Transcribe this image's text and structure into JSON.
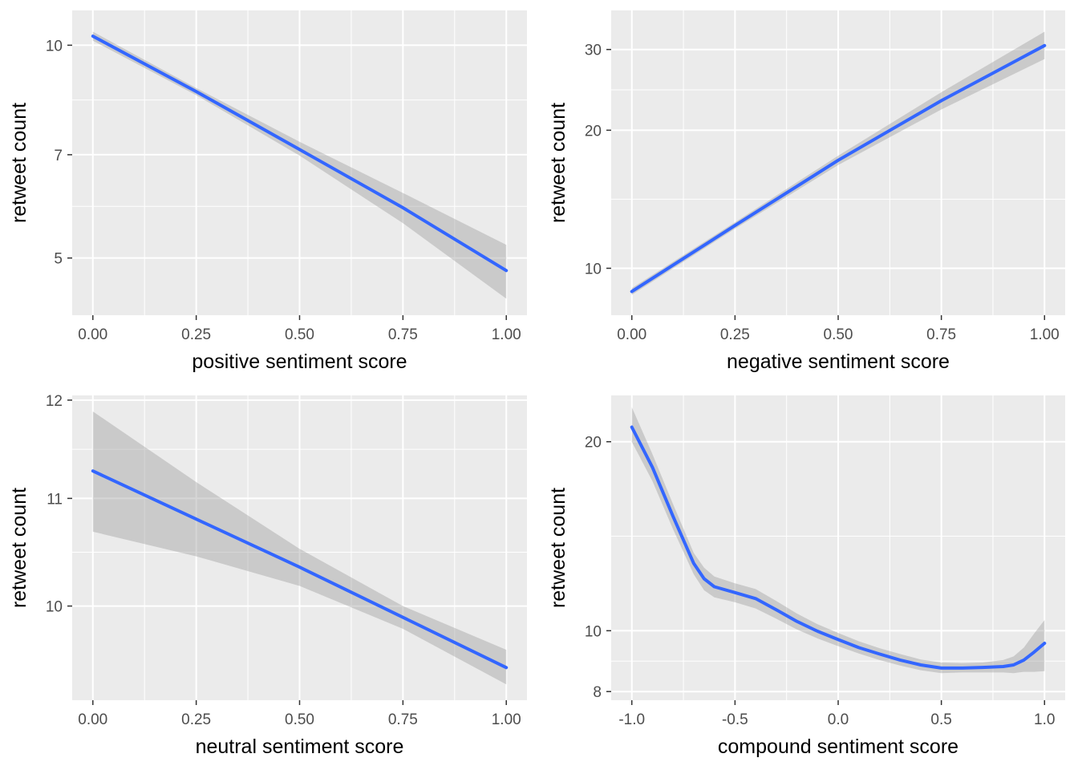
{
  "chart_data": [
    {
      "type": "line",
      "xlabel": "positive sentiment score",
      "ylabel": "retweet count",
      "y_scale": "log",
      "grid": true,
      "xlim": [
        -0.05,
        1.05
      ],
      "ylim": [
        4.15,
        11.2
      ],
      "x_ticks": [
        {
          "value": 0,
          "label": "0.00"
        },
        {
          "value": 0.25,
          "label": "0.25"
        },
        {
          "value": 0.5,
          "label": "0.50"
        },
        {
          "value": 0.75,
          "label": "0.75"
        },
        {
          "value": 1,
          "label": "1.00"
        }
      ],
      "y_ticks": [
        {
          "value": 5,
          "label": "5"
        },
        {
          "value": 7,
          "label": "7"
        },
        {
          "value": 10,
          "label": "10"
        }
      ],
      "series": [
        {
          "color": "#3366FF",
          "x": [
            0,
            0.25,
            0.5,
            0.75,
            1
          ],
          "y": [
            10.3,
            8.6,
            7.12,
            5.89,
            4.8
          ],
          "ci_low": [
            10.15,
            8.5,
            6.98,
            5.6,
            4.38
          ],
          "ci_high": [
            10.45,
            8.7,
            7.3,
            6.18,
            5.22
          ]
        }
      ]
    },
    {
      "type": "line",
      "xlabel": "negative sentiment score",
      "ylabel": "retweet count",
      "y_scale": "log",
      "grid": true,
      "xlim": [
        -0.05,
        1.05
      ],
      "ylim": [
        7.9,
        36.5
      ],
      "x_ticks": [
        {
          "value": 0,
          "label": "0.00"
        },
        {
          "value": 0.25,
          "label": "0.25"
        },
        {
          "value": 0.5,
          "label": "0.50"
        },
        {
          "value": 0.75,
          "label": "0.75"
        },
        {
          "value": 1,
          "label": "1.00"
        }
      ],
      "y_ticks": [
        {
          "value": 10,
          "label": "10"
        },
        {
          "value": 20,
          "label": "20"
        },
        {
          "value": 30,
          "label": "30"
        }
      ],
      "series": [
        {
          "color": "#3366FF",
          "x": [
            0,
            0.25,
            0.5,
            0.75,
            1
          ],
          "y": [
            8.9,
            12.4,
            17.2,
            23.2,
            30.6
          ],
          "ci_low": [
            8.75,
            12.2,
            16.8,
            22.2,
            28.6
          ],
          "ci_high": [
            9.05,
            12.6,
            17.6,
            24.2,
            32.8
          ]
        }
      ]
    },
    {
      "type": "line",
      "xlabel": "neutral sentiment score",
      "ylabel": "retweet count",
      "y_scale": "log",
      "grid": true,
      "xlim": [
        -0.05,
        1.05
      ],
      "ylim": [
        9.2,
        12.05
      ],
      "x_ticks": [
        {
          "value": 0,
          "label": "0.00"
        },
        {
          "value": 0.25,
          "label": "0.25"
        },
        {
          "value": 0.5,
          "label": "0.50"
        },
        {
          "value": 0.75,
          "label": "0.75"
        },
        {
          "value": 1,
          "label": "1.00"
        }
      ],
      "y_ticks": [
        {
          "value": 10,
          "label": "10"
        },
        {
          "value": 11,
          "label": "11"
        },
        {
          "value": 12,
          "label": "12"
        }
      ],
      "series": [
        {
          "color": "#3366FF",
          "x": [
            0,
            0.25,
            0.5,
            0.75,
            1
          ],
          "y": [
            11.27,
            10.8,
            10.35,
            9.9,
            9.47
          ],
          "ci_low": [
            10.68,
            10.45,
            10.18,
            9.8,
            9.33
          ],
          "ci_high": [
            11.88,
            11.16,
            10.52,
            10.0,
            9.62
          ]
        }
      ]
    },
    {
      "type": "line",
      "xlabel": "compound sentiment score",
      "ylabel": "retweet count",
      "y_scale": "log",
      "grid": true,
      "xlim": [
        -1.1,
        1.1
      ],
      "ylim": [
        7.75,
        23.7
      ],
      "x_ticks": [
        {
          "value": -1,
          "label": "-1.0"
        },
        {
          "value": -0.5,
          "label": "-0.5"
        },
        {
          "value": 0,
          "label": "0.0"
        },
        {
          "value": 0.5,
          "label": "0.5"
        },
        {
          "value": 1,
          "label": "1.0"
        }
      ],
      "y_ticks": [
        {
          "value": 8,
          "label": "8"
        },
        {
          "value": 10,
          "label": "10"
        },
        {
          "value": 20,
          "label": "20"
        }
      ],
      "series": [
        {
          "color": "#3366FF",
          "x": [
            -1,
            -0.9,
            -0.8,
            -0.7,
            -0.65,
            -0.6,
            -0.5,
            -0.4,
            -0.3,
            -0.2,
            -0.1,
            0,
            0.1,
            0.2,
            0.3,
            0.4,
            0.5,
            0.6,
            0.7,
            0.8,
            0.85,
            0.9,
            0.95,
            1
          ],
          "y": [
            21.1,
            18.2,
            15.2,
            12.8,
            12.1,
            11.75,
            11.5,
            11.25,
            10.8,
            10.35,
            9.98,
            9.68,
            9.4,
            9.18,
            8.98,
            8.82,
            8.72,
            8.72,
            8.74,
            8.77,
            8.82,
            8.98,
            9.25,
            9.55
          ],
          "ci_low": [
            20.0,
            17.3,
            14.5,
            12.3,
            11.6,
            11.3,
            11.1,
            10.85,
            10.45,
            10.05,
            9.72,
            9.45,
            9.2,
            8.98,
            8.8,
            8.65,
            8.56,
            8.58,
            8.58,
            8.58,
            8.56,
            8.6,
            8.6,
            8.62
          ],
          "ci_high": [
            22.7,
            19.1,
            15.9,
            13.3,
            12.6,
            12.2,
            11.9,
            11.65,
            11.15,
            10.65,
            10.24,
            9.92,
            9.62,
            9.38,
            9.18,
            9.0,
            8.9,
            8.88,
            8.9,
            8.98,
            9.1,
            9.4,
            9.9,
            10.4
          ]
        }
      ]
    }
  ]
}
